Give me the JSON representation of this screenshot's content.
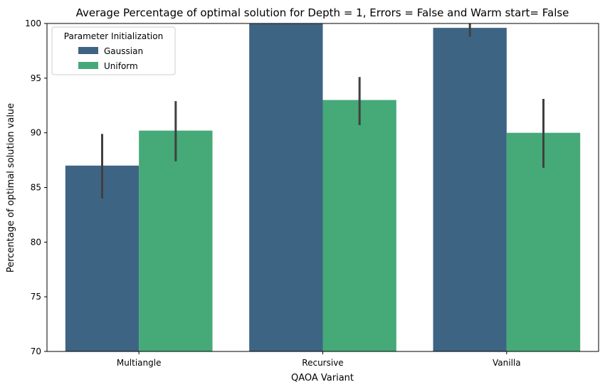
{
  "chart_data": {
    "type": "bar",
    "title": "Average Percentage of optimal solution for Depth = 1, Errors = False and Warm start= False",
    "xlabel": "QAOA Variant",
    "ylabel": "Percentage of optimal solution value",
    "categories": [
      "Multiangle",
      "Recursive",
      "Vanilla"
    ],
    "ylim": [
      70,
      100
    ],
    "yticks": [
      70,
      75,
      80,
      85,
      90,
      95,
      100
    ],
    "grid": false,
    "legend": {
      "title": "Parameter Initialization",
      "placement": "top-left"
    },
    "series": [
      {
        "name": "Gaussian",
        "color": "#3e6483",
        "values": [
          87.0,
          100.0,
          99.6
        ],
        "err_low": [
          84.0,
          100.0,
          98.8
        ],
        "err_high": [
          89.9,
          100.0,
          100.0
        ]
      },
      {
        "name": "Uniform",
        "color": "#46a978",
        "values": [
          90.2,
          93.0,
          90.0
        ],
        "err_low": [
          87.4,
          90.7,
          86.8
        ],
        "err_high": [
          92.9,
          95.1,
          93.1
        ]
      }
    ],
    "error_bar_color": "#404040"
  }
}
